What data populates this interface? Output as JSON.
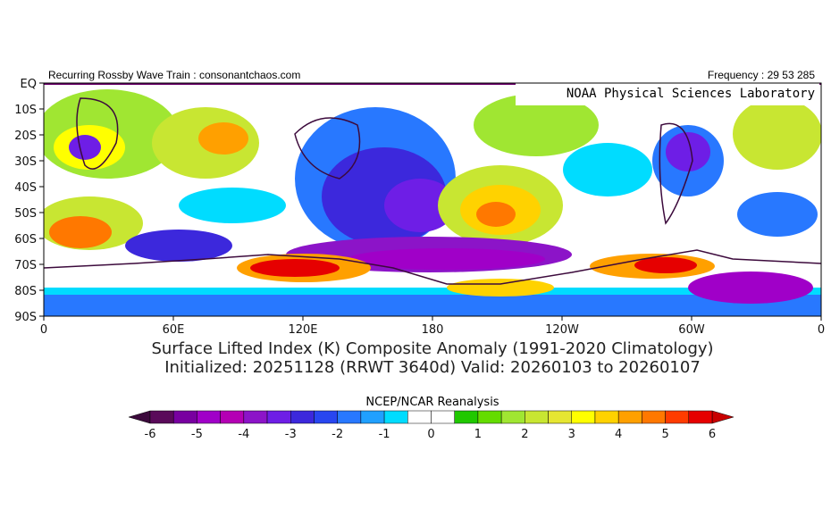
{
  "header": {
    "left": "Recurring Rossby Wave Train : consonantchaos.com",
    "right": "Frequency : 29 53 285",
    "badge": "NOAA Physical Sciences Laboratory"
  },
  "map": {
    "lat_labels": [
      "EQ",
      "10S",
      "20S",
      "30S",
      "40S",
      "50S",
      "60S",
      "70S",
      "80S",
      "90S"
    ],
    "lon_labels": [
      "0",
      "60E",
      "120E",
      "180",
      "120W",
      "60W",
      "0"
    ]
  },
  "title": {
    "line1": "Surface Lifted Index (K) Composite Anomaly (1991-2020 Climatology)",
    "line2": "Initialized: 20251128 (RRWT 3640d) Valid: 20260103 to 20260107"
  },
  "legend": {
    "title": "NCEP/NCAR Reanalysis",
    "labels": [
      "-6",
      "-5",
      "-4",
      "-3",
      "-2",
      "-1",
      "0",
      "1",
      "2",
      "3",
      "4",
      "5",
      "6"
    ],
    "low_color": "#3c0a3c",
    "high_color": "#c80000",
    "colors": [
      "#5a0a5a",
      "#7800a0",
      "#a000c8",
      "#b400b4",
      "#8c14c8",
      "#6e1ee6",
      "#3c28dc",
      "#2846f0",
      "#2878ff",
      "#20a0ff",
      "#00dcff",
      "#ffffff",
      "#ffffff",
      "#20c800",
      "#64dc00",
      "#a0e632",
      "#c8e632",
      "#e6e632",
      "#ffff00",
      "#ffd200",
      "#ffa000",
      "#ff7800",
      "#ff3c00",
      "#e60000"
    ]
  }
}
